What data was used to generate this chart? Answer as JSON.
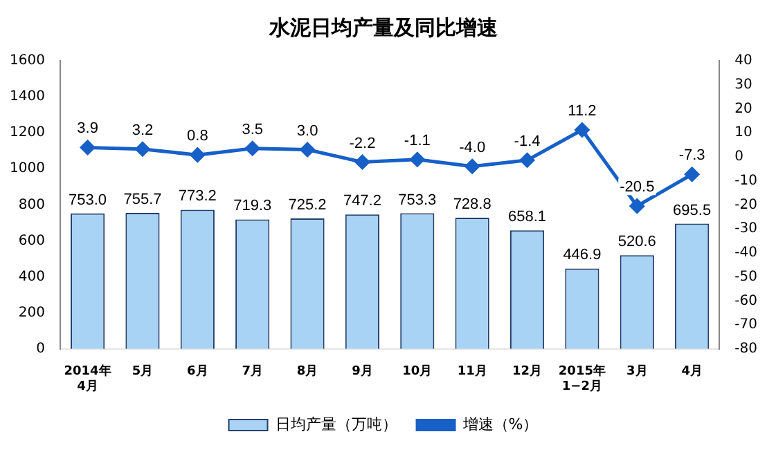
{
  "chart_data": {
    "type": "bar",
    "title": "水泥日均产量及同比增速",
    "categories": [
      "2014年\n4月",
      "5月",
      "6月",
      "7月",
      "8月",
      "9月",
      "10月",
      "11月",
      "12月",
      "2015年\n1−2月",
      "3月",
      "4月"
    ],
    "series": [
      {
        "name": "日均产量（万吨）",
        "color": "#a9d3f5",
        "values": [
          753.0,
          755.7,
          773.2,
          719.3,
          725.2,
          747.2,
          753.3,
          728.8,
          658.1,
          446.9,
          520.6,
          695.5
        ],
        "value_labels": [
          "753.0",
          "755.7",
          "773.2",
          "719.3",
          "725.2",
          "747.2",
          "753.3",
          "728.8",
          "658.1",
          "446.9",
          "520.6",
          "695.5"
        ]
      },
      {
        "name": "增速（%）",
        "type": "line",
        "axis": "y2",
        "color": "#1660c8",
        "values": [
          3.9,
          3.2,
          0.8,
          3.5,
          3.0,
          -2.2,
          -1.1,
          -4.0,
          -1.4,
          11.2,
          -20.5,
          -7.3
        ],
        "value_labels": [
          "3.9",
          "3.2",
          "0.8",
          "3.5",
          "3.0",
          "-2.2",
          "-1.1",
          "-4.0",
          "-1.4",
          "11.2",
          "-20.5",
          "-7.3"
        ]
      }
    ],
    "ylim": [
      0,
      1600
    ],
    "yticks": [
      0,
      200,
      400,
      600,
      800,
      1000,
      1200,
      1400,
      1600
    ],
    "y2lim": [
      -80,
      40
    ],
    "y2ticks": [
      -80,
      -70,
      -60,
      -50,
      -40,
      -30,
      -20,
      -10,
      0,
      10,
      20,
      30,
      40
    ],
    "legend": "bottom",
    "grid": false,
    "marker": "diamond"
  }
}
